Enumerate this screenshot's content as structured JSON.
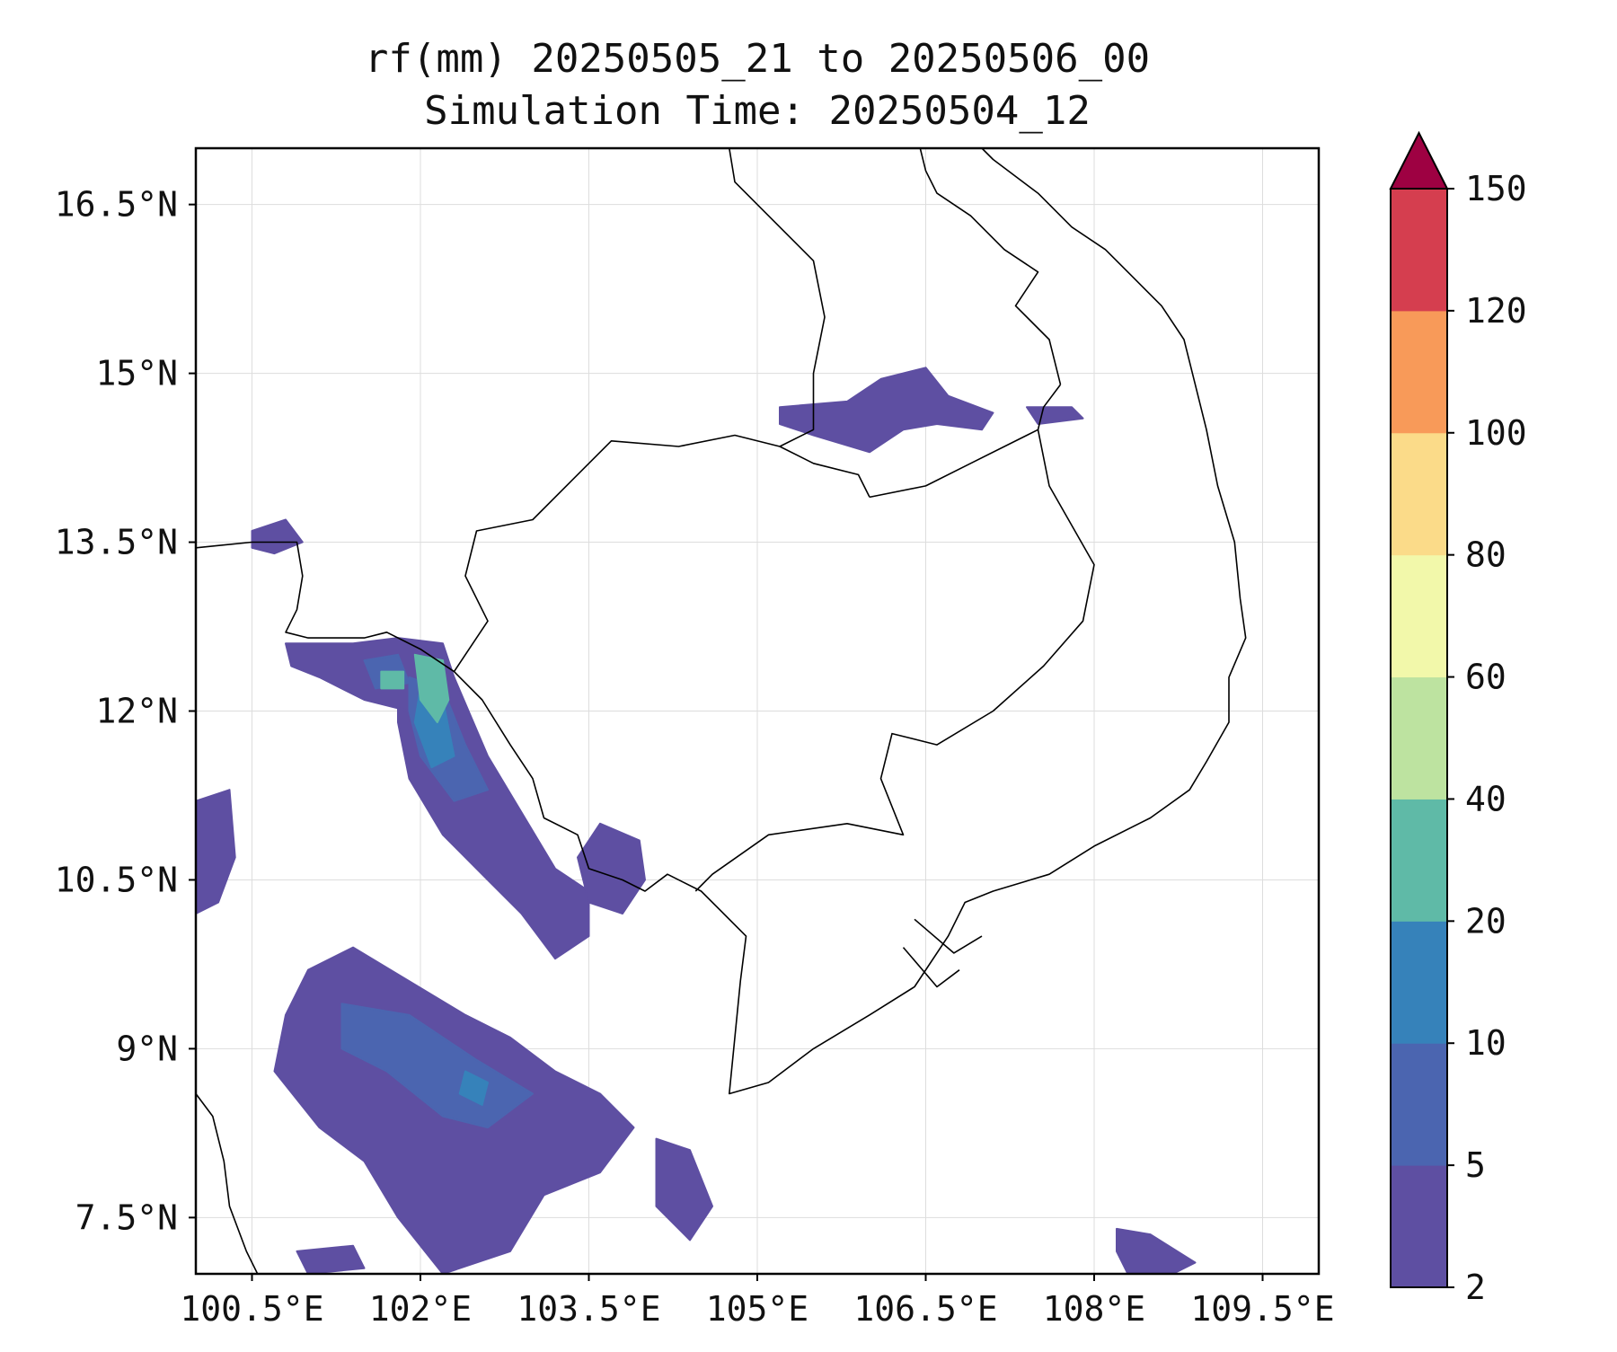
{
  "title": {
    "line1": "rf(mm) 20250505_21 to 20250506_00",
    "line2": "Simulation Time: 20250504_12"
  },
  "map": {
    "lon_range": [
      100.0,
      110.0
    ],
    "lat_range": [
      7.0,
      17.0
    ],
    "x_ticks": [
      {
        "value": 100.5,
        "label": "100.5°E"
      },
      {
        "value": 102.0,
        "label": "102°E"
      },
      {
        "value": 103.5,
        "label": "103.5°E"
      },
      {
        "value": 105.0,
        "label": "105°E"
      },
      {
        "value": 106.5,
        "label": "106.5°E"
      },
      {
        "value": 108.0,
        "label": "108°E"
      },
      {
        "value": 109.5,
        "label": "109.5°E"
      }
    ],
    "y_ticks": [
      {
        "value": 16.5,
        "label": "16.5°N"
      },
      {
        "value": 15.0,
        "label": "15°N"
      },
      {
        "value": 13.5,
        "label": "13.5°N"
      },
      {
        "value": 12.0,
        "label": "12°N"
      },
      {
        "value": 10.5,
        "label": "10.5°N"
      },
      {
        "value": 9.0,
        "label": "9°N"
      },
      {
        "value": 7.5,
        "label": "7.5°N"
      }
    ],
    "grid": true
  },
  "colorbar": {
    "levels": [
      2,
      5,
      10,
      20,
      40,
      60,
      80,
      100,
      120,
      150
    ],
    "labels": [
      "2",
      "5",
      "10",
      "20",
      "40",
      "60",
      "80",
      "100",
      "120",
      "150"
    ],
    "colors": [
      "#5e4fa2",
      "#4b65b0",
      "#3682ba",
      "#5fbaa7",
      "#bde3a0",
      "#f2f8aa",
      "#fbdb89",
      "#f89a59",
      "#d53e4f"
    ],
    "extend_color": "#9e0142"
  },
  "rain_regions": [
    {
      "name": "gulf-of-thailand-south",
      "level": 0,
      "points": [
        [
          101.0,
          9.7
        ],
        [
          101.4,
          9.9
        ],
        [
          101.9,
          9.6
        ],
        [
          102.4,
          9.3
        ],
        [
          102.8,
          9.1
        ],
        [
          103.2,
          8.8
        ],
        [
          103.6,
          8.6
        ],
        [
          103.9,
          8.3
        ],
        [
          103.6,
          7.9
        ],
        [
          103.1,
          7.7
        ],
        [
          102.8,
          7.2
        ],
        [
          102.2,
          7.0
        ],
        [
          101.8,
          7.5
        ],
        [
          101.5,
          8.0
        ],
        [
          101.1,
          8.3
        ],
        [
          100.7,
          8.8
        ],
        [
          100.8,
          9.3
        ]
      ]
    },
    {
      "name": "gulf-of-thailand-west",
      "level": 0,
      "points": [
        [
          100.0,
          11.2
        ],
        [
          100.3,
          11.3
        ],
        [
          100.35,
          10.7
        ],
        [
          100.2,
          10.3
        ],
        [
          100.0,
          10.2
        ]
      ]
    },
    {
      "name": "gulf-coast-band",
      "level": 0,
      "points": [
        [
          101.8,
          12.4
        ],
        [
          102.3,
          12.3
        ],
        [
          102.6,
          11.6
        ],
        [
          102.9,
          11.1
        ],
        [
          103.2,
          10.6
        ],
        [
          103.5,
          10.4
        ],
        [
          103.5,
          10.0
        ],
        [
          103.2,
          9.8
        ],
        [
          102.9,
          10.2
        ],
        [
          102.6,
          10.5
        ],
        [
          102.2,
          10.9
        ],
        [
          101.9,
          11.4
        ],
        [
          101.8,
          11.9
        ]
      ]
    },
    {
      "name": "trat-coast",
      "level": 0,
      "points": [
        [
          100.8,
          12.6
        ],
        [
          101.4,
          12.6
        ],
        [
          101.8,
          12.65
        ],
        [
          102.2,
          12.6
        ],
        [
          102.3,
          12.3
        ],
        [
          101.9,
          12.0
        ],
        [
          101.5,
          12.1
        ],
        [
          101.1,
          12.3
        ],
        [
          100.85,
          12.4
        ]
      ]
    },
    {
      "name": "gulf-east-blob",
      "level": 0,
      "points": [
        [
          103.6,
          11.0
        ],
        [
          103.95,
          10.85
        ],
        [
          104.0,
          10.5
        ],
        [
          103.8,
          10.2
        ],
        [
          103.5,
          10.3
        ],
        [
          103.4,
          10.7
        ]
      ]
    },
    {
      "name": "north-east-blob",
      "level": 0,
      "points": [
        [
          105.2,
          14.7
        ],
        [
          105.8,
          14.75
        ],
        [
          106.1,
          14.95
        ],
        [
          106.5,
          15.05
        ],
        [
          106.7,
          14.8
        ],
        [
          107.1,
          14.65
        ],
        [
          107.0,
          14.5
        ],
        [
          106.6,
          14.55
        ],
        [
          106.3,
          14.5
        ],
        [
          106.0,
          14.3
        ],
        [
          105.5,
          14.45
        ],
        [
          105.2,
          14.55
        ]
      ]
    },
    {
      "name": "north-east-small",
      "level": 0,
      "points": [
        [
          107.4,
          14.7
        ],
        [
          107.8,
          14.7
        ],
        [
          107.9,
          14.6
        ],
        [
          107.5,
          14.55
        ]
      ]
    },
    {
      "name": "gulf-of-thailand-se",
      "level": 0,
      "points": [
        [
          104.1,
          8.2
        ],
        [
          104.4,
          8.1
        ],
        [
          104.6,
          7.6
        ],
        [
          104.4,
          7.3
        ],
        [
          104.1,
          7.6
        ]
      ]
    },
    {
      "name": "south-east-blob",
      "level": 0,
      "points": [
        [
          108.2,
          7.4
        ],
        [
          108.5,
          7.35
        ],
        [
          108.9,
          7.1
        ],
        [
          108.7,
          7.0
        ],
        [
          108.3,
          7.0
        ],
        [
          108.2,
          7.2
        ]
      ]
    },
    {
      "name": "south-west-small",
      "level": 0,
      "points": [
        [
          100.9,
          7.2
        ],
        [
          101.4,
          7.25
        ],
        [
          101.5,
          7.05
        ],
        [
          101.0,
          7.0
        ]
      ]
    },
    {
      "name": "west-edge-blob",
      "level": 0,
      "points": [
        [
          100.5,
          13.6
        ],
        [
          100.8,
          13.7
        ],
        [
          100.95,
          13.5
        ],
        [
          100.7,
          13.4
        ],
        [
          100.5,
          13.45
        ]
      ]
    },
    {
      "name": "gulf-mid-level5",
      "level": 1,
      "points": [
        [
          101.9,
          12.3
        ],
        [
          102.2,
          12.2
        ],
        [
          102.4,
          11.7
        ],
        [
          102.6,
          11.3
        ],
        [
          102.3,
          11.2
        ],
        [
          102.0,
          11.6
        ],
        [
          101.9,
          12.0
        ]
      ]
    },
    {
      "name": "gulf-south-level5",
      "level": 1,
      "points": [
        [
          101.3,
          9.4
        ],
        [
          101.9,
          9.3
        ],
        [
          102.5,
          8.9
        ],
        [
          103.0,
          8.6
        ],
        [
          102.6,
          8.3
        ],
        [
          102.2,
          8.4
        ],
        [
          101.7,
          8.8
        ],
        [
          101.3,
          9.0
        ]
      ]
    },
    {
      "name": "trat-level5",
      "level": 1,
      "points": [
        [
          101.5,
          12.45
        ],
        [
          101.8,
          12.5
        ],
        [
          101.9,
          12.25
        ],
        [
          101.6,
          12.2
        ]
      ]
    },
    {
      "name": "gulf-mid-level10",
      "level": 2,
      "points": [
        [
          102.0,
          12.2
        ],
        [
          102.2,
          12.1
        ],
        [
          102.3,
          11.6
        ],
        [
          102.1,
          11.5
        ],
        [
          101.95,
          11.9
        ]
      ]
    },
    {
      "name": "gulf-south-level10",
      "level": 2,
      "points": [
        [
          102.4,
          8.8
        ],
        [
          102.6,
          8.7
        ],
        [
          102.55,
          8.5
        ],
        [
          102.35,
          8.6
        ]
      ]
    },
    {
      "name": "gulf-mid-level20",
      "level": 3,
      "points": [
        [
          101.95,
          12.5
        ],
        [
          102.2,
          12.45
        ],
        [
          102.25,
          12.1
        ],
        [
          102.15,
          11.9
        ],
        [
          102.0,
          12.1
        ]
      ]
    },
    {
      "name": "trat-level20",
      "level": 3,
      "points": [
        [
          101.65,
          12.35
        ],
        [
          101.85,
          12.35
        ],
        [
          101.85,
          12.2
        ],
        [
          101.65,
          12.2
        ]
      ]
    }
  ],
  "coastlines": [
    {
      "name": "gulf-east-coast",
      "points": [
        [
          100.0,
          13.45
        ],
        [
          100.5,
          13.5
        ],
        [
          100.9,
          13.5
        ],
        [
          100.95,
          13.2
        ],
        [
          100.9,
          12.9
        ],
        [
          100.8,
          12.7
        ],
        [
          101.0,
          12.65
        ],
        [
          101.5,
          12.65
        ],
        [
          101.7,
          12.7
        ],
        [
          102.0,
          12.55
        ],
        [
          102.3,
          12.35
        ],
        [
          102.55,
          12.1
        ],
        [
          102.8,
          11.7
        ],
        [
          103.0,
          11.4
        ],
        [
          103.1,
          11.05
        ],
        [
          103.4,
          10.9
        ],
        [
          103.5,
          10.6
        ],
        [
          103.8,
          10.5
        ],
        [
          104.0,
          10.4
        ],
        [
          104.2,
          10.55
        ],
        [
          104.5,
          10.4
        ],
        [
          104.7,
          10.2
        ],
        [
          104.9,
          10.0
        ],
        [
          104.85,
          9.6
        ],
        [
          104.8,
          9.1
        ],
        [
          104.75,
          8.6
        ],
        [
          105.1,
          8.7
        ],
        [
          105.5,
          9.0
        ],
        [
          106.0,
          9.3
        ],
        [
          106.4,
          9.55
        ],
        [
          106.7,
          10.0
        ],
        [
          106.85,
          10.3
        ],
        [
          107.1,
          10.4
        ],
        [
          107.6,
          10.55
        ],
        [
          108.0,
          10.8
        ],
        [
          108.5,
          11.05
        ],
        [
          108.85,
          11.3
        ],
        [
          109.0,
          11.55
        ],
        [
          109.2,
          11.9
        ],
        [
          109.2,
          12.3
        ],
        [
          109.35,
          12.65
        ],
        [
          109.3,
          13.0
        ],
        [
          109.25,
          13.5
        ],
        [
          109.1,
          14.0
        ],
        [
          109.0,
          14.5
        ],
        [
          108.9,
          14.9
        ],
        [
          108.8,
          15.3
        ],
        [
          108.6,
          15.6
        ],
        [
          108.3,
          15.9
        ],
        [
          108.1,
          16.1
        ],
        [
          107.8,
          16.3
        ],
        [
          107.5,
          16.6
        ],
        [
          107.1,
          16.9
        ],
        [
          107.0,
          17.0
        ]
      ]
    },
    {
      "name": "gulf-west-coast",
      "points": [
        [
          100.0,
          8.6
        ],
        [
          100.15,
          8.4
        ],
        [
          100.25,
          8.0
        ],
        [
          100.3,
          7.6
        ],
        [
          100.45,
          7.2
        ],
        [
          100.55,
          7.0
        ]
      ]
    },
    {
      "name": "mekong-delta-branch-1",
      "points": [
        [
          106.3,
          9.9
        ],
        [
          106.6,
          9.55
        ],
        [
          106.8,
          9.7
        ]
      ]
    },
    {
      "name": "mekong-delta-branch-2",
      "points": [
        [
          106.4,
          10.15
        ],
        [
          106.75,
          9.85
        ],
        [
          107.0,
          10.0
        ]
      ]
    }
  ],
  "borders": [
    {
      "name": "thailand-cambodia",
      "points": [
        [
          102.3,
          12.35
        ],
        [
          102.6,
          12.8
        ],
        [
          102.4,
          13.2
        ],
        [
          102.5,
          13.6
        ],
        [
          103.0,
          13.7
        ],
        [
          103.7,
          14.4
        ],
        [
          104.3,
          14.35
        ],
        [
          104.8,
          14.45
        ],
        [
          105.2,
          14.35
        ],
        [
          105.5,
          14.2
        ],
        [
          105.9,
          14.1
        ],
        [
          106.0,
          13.9
        ]
      ]
    },
    {
      "name": "laos-cambodia",
      "points": [
        [
          106.0,
          13.9
        ],
        [
          106.5,
          14.0
        ],
        [
          106.9,
          14.2
        ],
        [
          107.5,
          14.5
        ],
        [
          107.55,
          14.7
        ],
        [
          107.7,
          14.9
        ]
      ]
    },
    {
      "name": "cambodia-vietnam",
      "points": [
        [
          107.5,
          14.5
        ],
        [
          107.6,
          14.0
        ],
        [
          108.0,
          13.3
        ],
        [
          107.9,
          12.8
        ],
        [
          107.55,
          12.4
        ],
        [
          107.1,
          12.0
        ],
        [
          106.6,
          11.7
        ],
        [
          106.2,
          11.8
        ],
        [
          106.1,
          11.4
        ],
        [
          106.3,
          10.9
        ],
        [
          105.8,
          11.0
        ],
        [
          105.1,
          10.9
        ],
        [
          104.6,
          10.55
        ],
        [
          104.45,
          10.4
        ]
      ]
    },
    {
      "name": "laos-thailand",
      "points": [
        [
          105.2,
          14.35
        ],
        [
          105.5,
          14.5
        ],
        [
          105.5,
          15.0
        ],
        [
          105.6,
          15.5
        ],
        [
          105.5,
          16.0
        ],
        [
          105.1,
          16.4
        ],
        [
          104.8,
          16.7
        ],
        [
          104.75,
          17.0
        ]
      ]
    },
    {
      "name": "laos-vietnam",
      "points": [
        [
          107.7,
          14.9
        ],
        [
          107.6,
          15.3
        ],
        [
          107.3,
          15.6
        ],
        [
          107.5,
          15.9
        ],
        [
          107.2,
          16.1
        ],
        [
          106.9,
          16.4
        ],
        [
          106.6,
          16.6
        ],
        [
          106.5,
          16.8
        ],
        [
          106.45,
          17.0
        ]
      ]
    }
  ]
}
